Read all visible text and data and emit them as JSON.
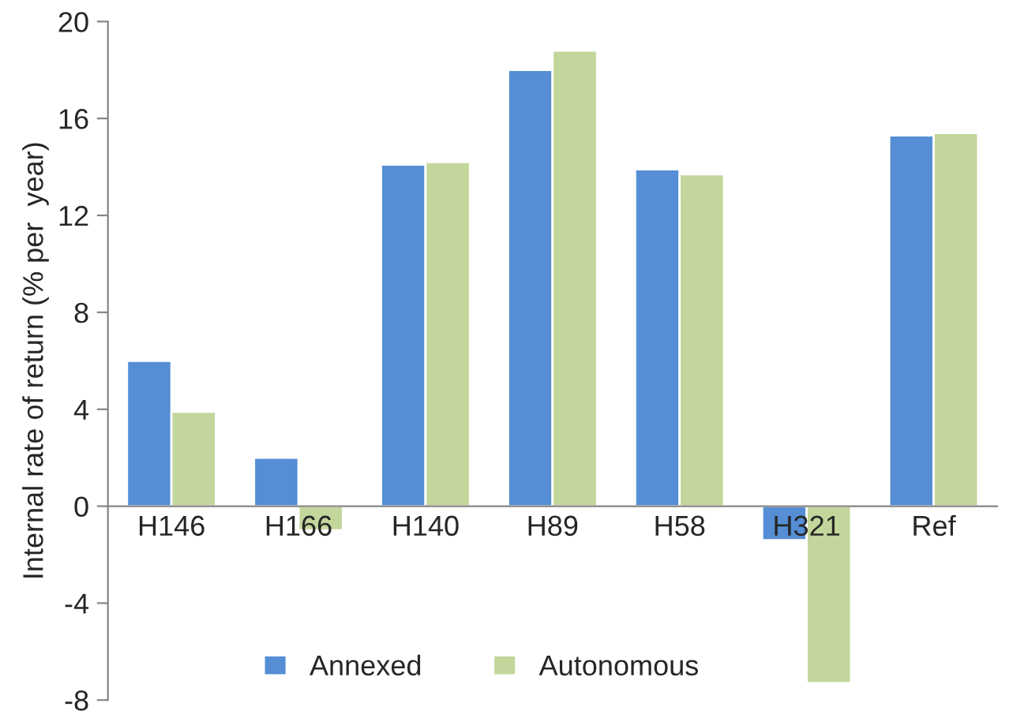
{
  "chart_data": {
    "type": "bar",
    "ylabel": "Internal rate of return (% per  year)",
    "categories": [
      "H146",
      "H166",
      "H140",
      "H89",
      "H58",
      "H321",
      "Ref"
    ],
    "series": [
      {
        "name": "Annexed",
        "color": "#558ed5",
        "values": [
          6.0,
          2.0,
          14.1,
          18.0,
          13.9,
          -1.4,
          15.3
        ]
      },
      {
        "name": "Autonomous",
        "color": "#c3d69b",
        "values": [
          3.9,
          -1.0,
          14.2,
          18.8,
          13.7,
          -7.3,
          15.4
        ]
      }
    ],
    "ylim": [
      -8,
      20
    ],
    "yticks": [
      -8,
      -4,
      0,
      4,
      8,
      12,
      16,
      20
    ],
    "grid": false,
    "legend": "bottom"
  }
}
